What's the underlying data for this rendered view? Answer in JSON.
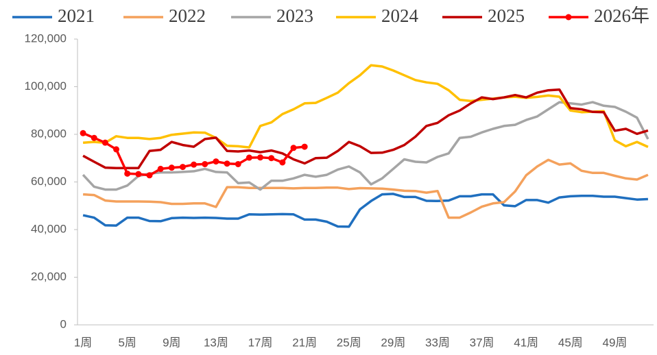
{
  "chart_data": {
    "type": "line",
    "categories": [
      "1周",
      null,
      null,
      null,
      "5周",
      null,
      null,
      null,
      "9周",
      null,
      null,
      null,
      "13周",
      null,
      null,
      null,
      "17周",
      null,
      null,
      null,
      "21周",
      null,
      null,
      null,
      "25周",
      null,
      null,
      null,
      "29周",
      null,
      null,
      null,
      "33周",
      null,
      null,
      null,
      "37周",
      null,
      null,
      null,
      "41周",
      null,
      null,
      null,
      "45周",
      null,
      null,
      null,
      "49周",
      null,
      null,
      null
    ],
    "ylim": [
      0,
      120000
    ],
    "yticks": [
      0,
      {
        "value": 20000,
        "label": "20,000"
      },
      {
        "value": 40000,
        "label": "40,000"
      },
      {
        "value": 60000,
        "label": "60,000"
      },
      {
        "value": 80000,
        "label": "80,000"
      },
      {
        "value": 100000,
        "label": "100,000"
      },
      {
        "value": 120000,
        "label": "120,000"
      }
    ],
    "legend": "top",
    "series": [
      {
        "name": "2021",
        "color": "#1f6fbf",
        "values": [
          46000,
          45000,
          41800,
          41700,
          45000,
          45000,
          43600,
          43500,
          44800,
          45000,
          44900,
          45000,
          44900,
          44600,
          44600,
          46400,
          46300,
          46400,
          46500,
          46400,
          44200,
          44200,
          43300,
          41300,
          41200,
          48500,
          52000,
          54800,
          55000,
          53700,
          53700,
          52100,
          52000,
          52200,
          54000,
          54000,
          54800,
          54800,
          50200,
          49800,
          52400,
          52400,
          51300,
          53500,
          54000,
          54200,
          54200,
          53800,
          53800,
          53200,
          52600,
          52800
        ]
      },
      {
        "name": "2022",
        "color": "#f4a15c",
        "values": [
          54800,
          54500,
          52200,
          51800,
          51800,
          51800,
          51700,
          51500,
          50800,
          50800,
          51000,
          51000,
          49500,
          57800,
          57800,
          57500,
          57500,
          57500,
          57500,
          57300,
          57500,
          57500,
          57600,
          57600,
          57000,
          57400,
          57300,
          57200,
          56800,
          56300,
          56200,
          55500,
          56200,
          45000,
          45000,
          47200,
          49600,
          51000,
          51500,
          56000,
          62800,
          66500,
          69300,
          67300,
          67800,
          64700,
          63800,
          63800,
          62600,
          61500,
          61000,
          63000
        ]
      },
      {
        "name": "2023",
        "color": "#a5a5a5",
        "values": [
          63000,
          58000,
          56800,
          56800,
          58500,
          62500,
          63500,
          64000,
          64000,
          64200,
          64500,
          65500,
          64200,
          64000,
          59500,
          59800,
          56800,
          60500,
          60500,
          61500,
          63000,
          62200,
          63000,
          65200,
          66500,
          64000,
          59000,
          61500,
          65500,
          69500,
          68500,
          68200,
          70500,
          72000,
          78500,
          79000,
          80800,
          82300,
          83500,
          84000,
          86000,
          87500,
          90500,
          93500,
          93000,
          92500,
          93500,
          92000,
          91500,
          89500,
          87000,
          78000
        ]
      },
      {
        "name": "2024",
        "color": "#ffc000",
        "values": [
          76500,
          76800,
          76500,
          79200,
          78500,
          78500,
          78000,
          78500,
          79800,
          80300,
          80800,
          80700,
          78500,
          75200,
          75000,
          74500,
          83500,
          85000,
          88500,
          90500,
          93000,
          93200,
          95300,
          97500,
          101500,
          104800,
          109000,
          108500,
          106800,
          104800,
          102800,
          101800,
          101200,
          98500,
          94500,
          94000,
          94500,
          95000,
          95500,
          95800,
          95300,
          95700,
          96300,
          95800,
          90000,
          89300,
          89500,
          89700,
          77500,
          75000,
          76800,
          74700
        ]
      },
      {
        "name": "2025",
        "color": "#c00000",
        "values": [
          71000,
          68500,
          66000,
          65800,
          65800,
          65800,
          73000,
          73500,
          76800,
          75500,
          74800,
          78000,
          78600,
          73000,
          72800,
          73200,
          72500,
          73200,
          72000,
          69500,
          67800,
          70000,
          70200,
          73000,
          76800,
          75000,
          72200,
          72300,
          73500,
          75500,
          79000,
          83500,
          84800,
          88000,
          90000,
          93000,
          95500,
          94800,
          95500,
          96500,
          95500,
          97500,
          98500,
          98800,
          91000,
          90500,
          89400,
          89300,
          81500,
          82300,
          80200,
          81600
        ]
      },
      {
        "name": "2026年",
        "color": "#ff0000",
        "marker": "circle",
        "values": [
          80500,
          78500,
          76500,
          73700,
          63500,
          63300,
          62800,
          65500,
          66000,
          66300,
          67300,
          67500,
          68600,
          67700,
          67500,
          70200,
          70300,
          70000,
          68200,
          74300,
          74800,
          null,
          null,
          null,
          null,
          null,
          null,
          null,
          null,
          null,
          null,
          null,
          null,
          null,
          null,
          null,
          null,
          null,
          null,
          null,
          null,
          null,
          null,
          null,
          null,
          null,
          null,
          null,
          null,
          null,
          null,
          null
        ]
      }
    ]
  }
}
